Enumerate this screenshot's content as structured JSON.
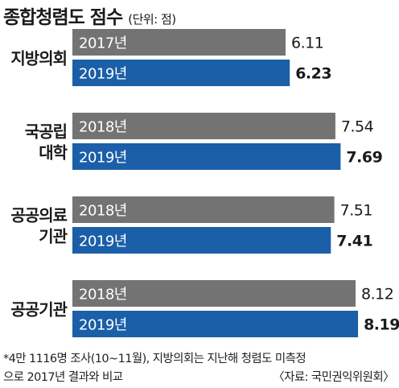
{
  "title": "종합청렴도 점수",
  "unit": "(단위: 점)",
  "chart_data": {
    "type": "bar",
    "orientation": "horizontal",
    "groups": [
      {
        "label": [
          "지방의회"
        ],
        "bars": [
          {
            "year": "2017년",
            "value": 6.11
          },
          {
            "year": "2019년",
            "value": 6.23
          }
        ]
      },
      {
        "label": [
          "국공립",
          "대학"
        ],
        "bars": [
          {
            "year": "2018년",
            "value": 7.54
          },
          {
            "year": "2019년",
            "value": 7.69
          }
        ]
      },
      {
        "label": [
          "공공의료",
          "기관"
        ],
        "bars": [
          {
            "year": "2018년",
            "value": 7.51
          },
          {
            "year": "2019년",
            "value": 7.41
          }
        ]
      },
      {
        "label": [
          "공공기관"
        ],
        "bars": [
          {
            "year": "2018년",
            "value": 8.12
          },
          {
            "year": "2019년",
            "value": 8.19
          }
        ]
      }
    ],
    "value_labels": [
      "6.11",
      "6.23",
      "7.54",
      "7.69",
      "7.51",
      "7.41",
      "8.12",
      "8.19"
    ],
    "colors": {
      "previous": "#737373",
      "current": "#1a5fa8"
    },
    "grid": false,
    "legend": "none"
  },
  "footnote": {
    "line1": "*4만 1116명 조사(10~11월), 지방의회는 지난해 청렴도 미측정",
    "line2": "으로 2017년 결과와 비교",
    "source": "〈자료: 국민권익위원회〉"
  }
}
